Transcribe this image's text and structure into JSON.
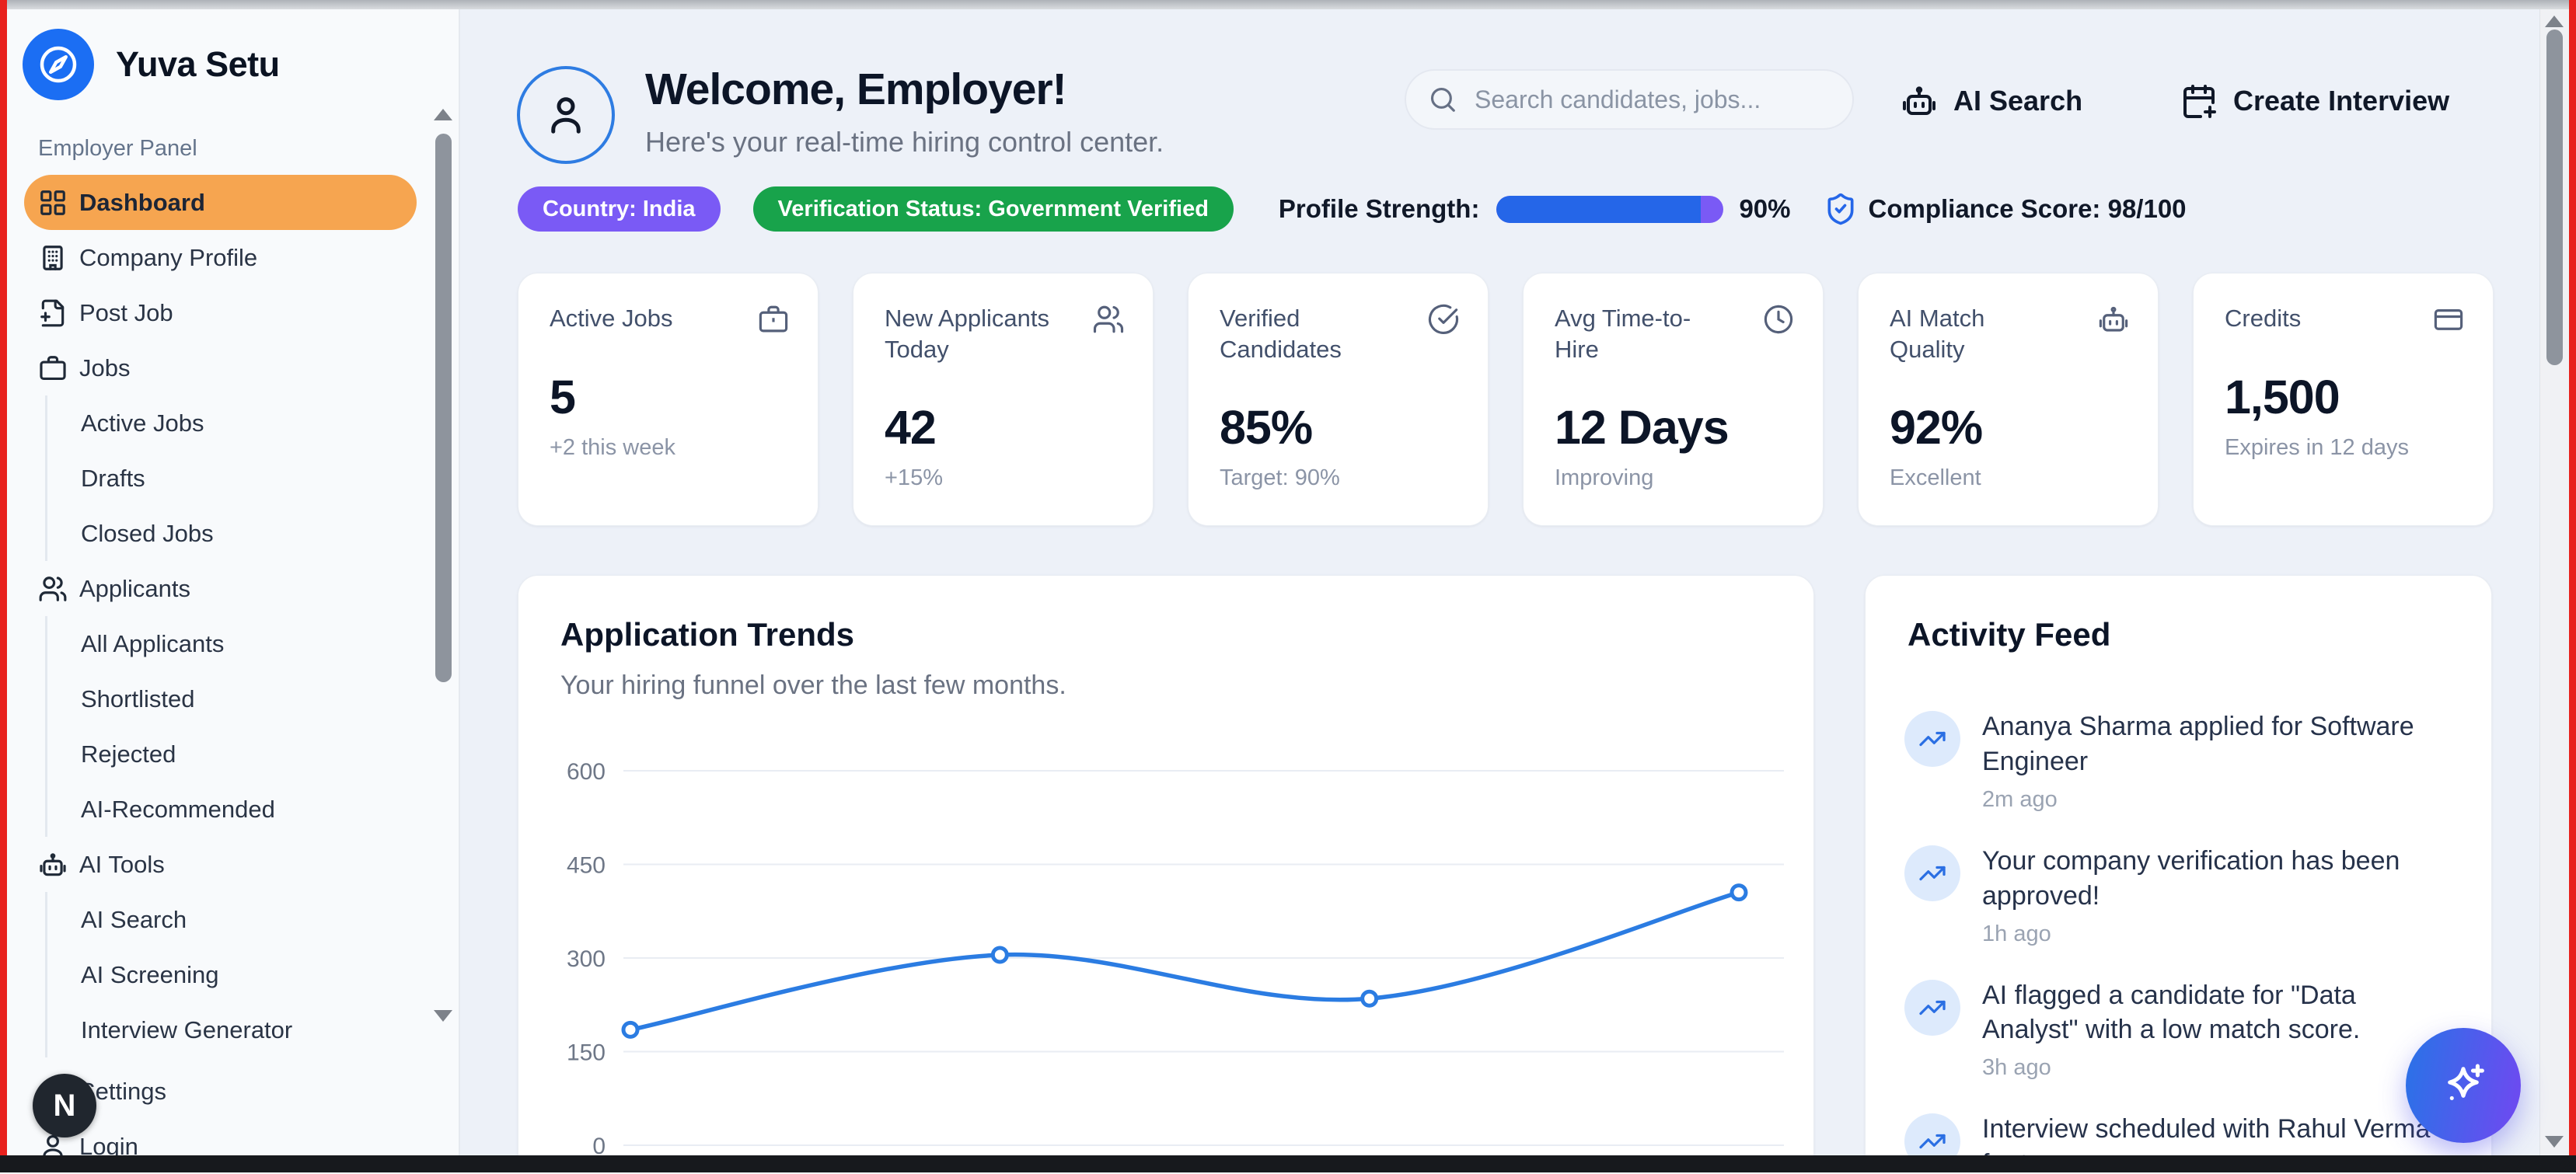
{
  "brand": {
    "name": "Yuva Setu"
  },
  "sidebar": {
    "section_label": "Employer Panel",
    "items": [
      {
        "label": "Dashboard",
        "icon": "grid",
        "active": true
      },
      {
        "label": "Company Profile",
        "icon": "building"
      },
      {
        "label": "Post Job",
        "icon": "file-plus"
      },
      {
        "label": "Jobs",
        "icon": "briefcase"
      },
      {
        "label": "Active Jobs",
        "sub": true
      },
      {
        "label": "Drafts",
        "sub": true
      },
      {
        "label": "Closed Jobs",
        "sub": true
      },
      {
        "label": "Applicants",
        "icon": "users"
      },
      {
        "label": "All Applicants",
        "sub": true
      },
      {
        "label": "Shortlisted",
        "sub": true
      },
      {
        "label": "Rejected",
        "sub": true
      },
      {
        "label": "AI-Recommended",
        "sub": true
      },
      {
        "label": "AI Tools",
        "icon": "robot"
      },
      {
        "label": "AI Search",
        "sub": true
      },
      {
        "label": "AI Screening",
        "sub": true
      },
      {
        "label": "Interview Generator",
        "sub": true
      },
      {
        "label": "Settings",
        "icon": "gear"
      },
      {
        "label": "Login",
        "icon": "user"
      }
    ],
    "overlay_badge": "N"
  },
  "header": {
    "greeting": "Welcome, Employer!",
    "subtitle": "Here's your real-time hiring control center.",
    "search_placeholder": "Search candidates, jobs...",
    "ai_search": "AI Search",
    "create_interview": "Create Interview"
  },
  "status": {
    "country": "Country: India",
    "verification": "Verification Status: Government Verified",
    "profile_strength_label": "Profile Strength:",
    "profile_strength_percent": 90,
    "profile_strength_text": "90%",
    "compliance": "Compliance Score: 98/100"
  },
  "stats": [
    {
      "label": "Active Jobs",
      "value": "5",
      "sub": "+2 this week",
      "icon": "briefcase"
    },
    {
      "label": "New Applicants Today",
      "value": "42",
      "sub": "+15%",
      "icon": "users"
    },
    {
      "label": "Verified Candidates",
      "value": "85%",
      "sub": "Target: 90%",
      "icon": "check-circle"
    },
    {
      "label": "Avg Time-to-Hire",
      "value": "12 Days",
      "sub": "Improving",
      "icon": "clock"
    },
    {
      "label": "AI Match Quality",
      "value": "92%",
      "sub": "Excellent",
      "icon": "robot"
    },
    {
      "label": "Credits",
      "value": "1,500",
      "sub": "Expires in 12 days",
      "icon": "credit-card"
    }
  ],
  "chart_card": {
    "title": "Application Trends",
    "subtitle": "Your hiring funnel over the last few months."
  },
  "chart_data": {
    "type": "line",
    "x": [
      1,
      2,
      3,
      4
    ],
    "x_labels_visible": false,
    "values": [
      185,
      305,
      235,
      405
    ],
    "y_ticks": [
      0,
      150,
      300,
      450,
      600
    ],
    "ylim": [
      0,
      600
    ],
    "grid": true,
    "legend": "none",
    "line_color": "#2b7ce2",
    "point_style": "open-circle"
  },
  "activity": {
    "title": "Activity Feed",
    "items": [
      {
        "text": "Ananya Sharma applied for Software Engineer",
        "time": "2m ago"
      },
      {
        "text": "Your company verification has been approved!",
        "time": "1h ago"
      },
      {
        "text": "AI flagged a candidate for \"Data Analyst\" with a low match score.",
        "time": "3h ago"
      },
      {
        "text": "Interview scheduled with Rahul Verma for tomorrow.",
        "time": ""
      }
    ]
  },
  "colors": {
    "brand_blue": "#1b6ef3",
    "sidebar_active": "#f6a550",
    "badge_violet": "#7a5af5",
    "badge_green": "#18a34b",
    "progress_fill": "#2566e8",
    "progress_track": "#7a5af5",
    "chart_line": "#2b7ce2",
    "fab_gradient_start": "#2f6fe8",
    "fab_gradient_end": "#6a4cf0"
  }
}
